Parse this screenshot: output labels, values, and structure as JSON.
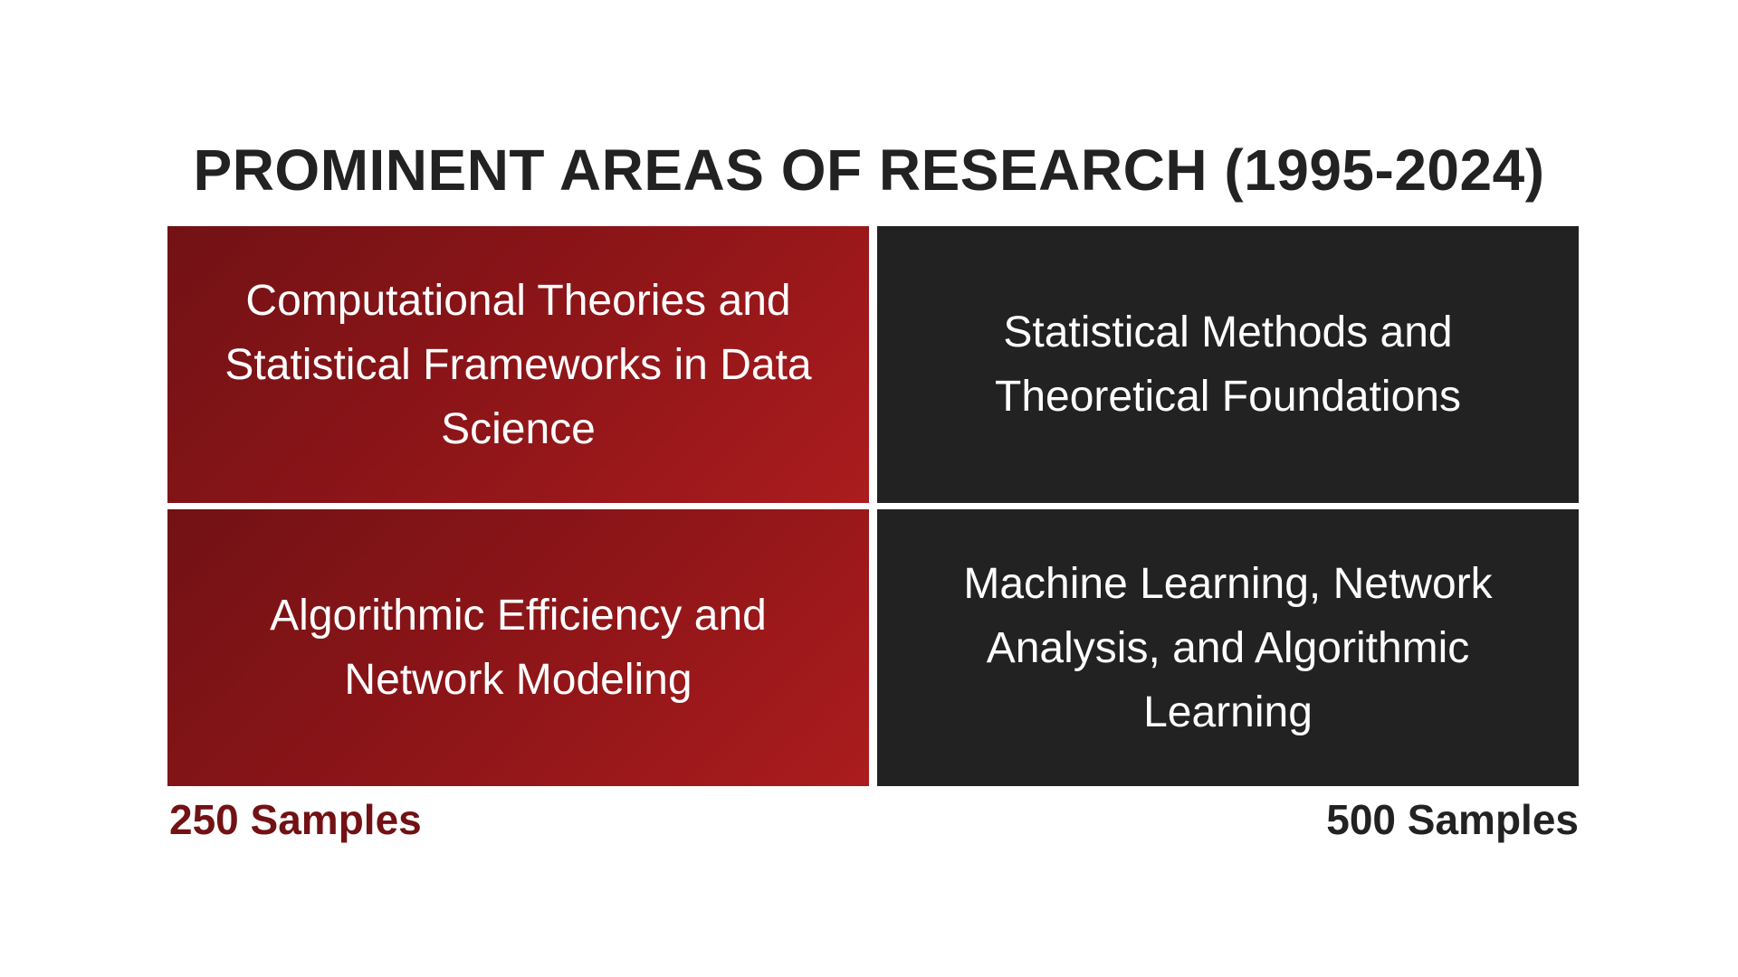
{
  "title": "PROMINENT AREAS OF RESEARCH (1995-2024)",
  "cells": [
    {
      "text": "Computational Theories and Statistical Frameworks in Data Science",
      "color": "#8d1518"
    },
    {
      "text": "Statistical Methods and Theoretical Foundations",
      "color": "#222222"
    },
    {
      "text": "Algorithmic Efficiency and Network Modeling",
      "color": "#8d1518"
    },
    {
      "text": "Machine Learning, Network Analysis, and Algorithmic Learning",
      "color": "#222222"
    }
  ],
  "labels": {
    "left": "250 Samples",
    "left_color": "#721215",
    "right": "500 Samples",
    "right_color": "#222222"
  }
}
